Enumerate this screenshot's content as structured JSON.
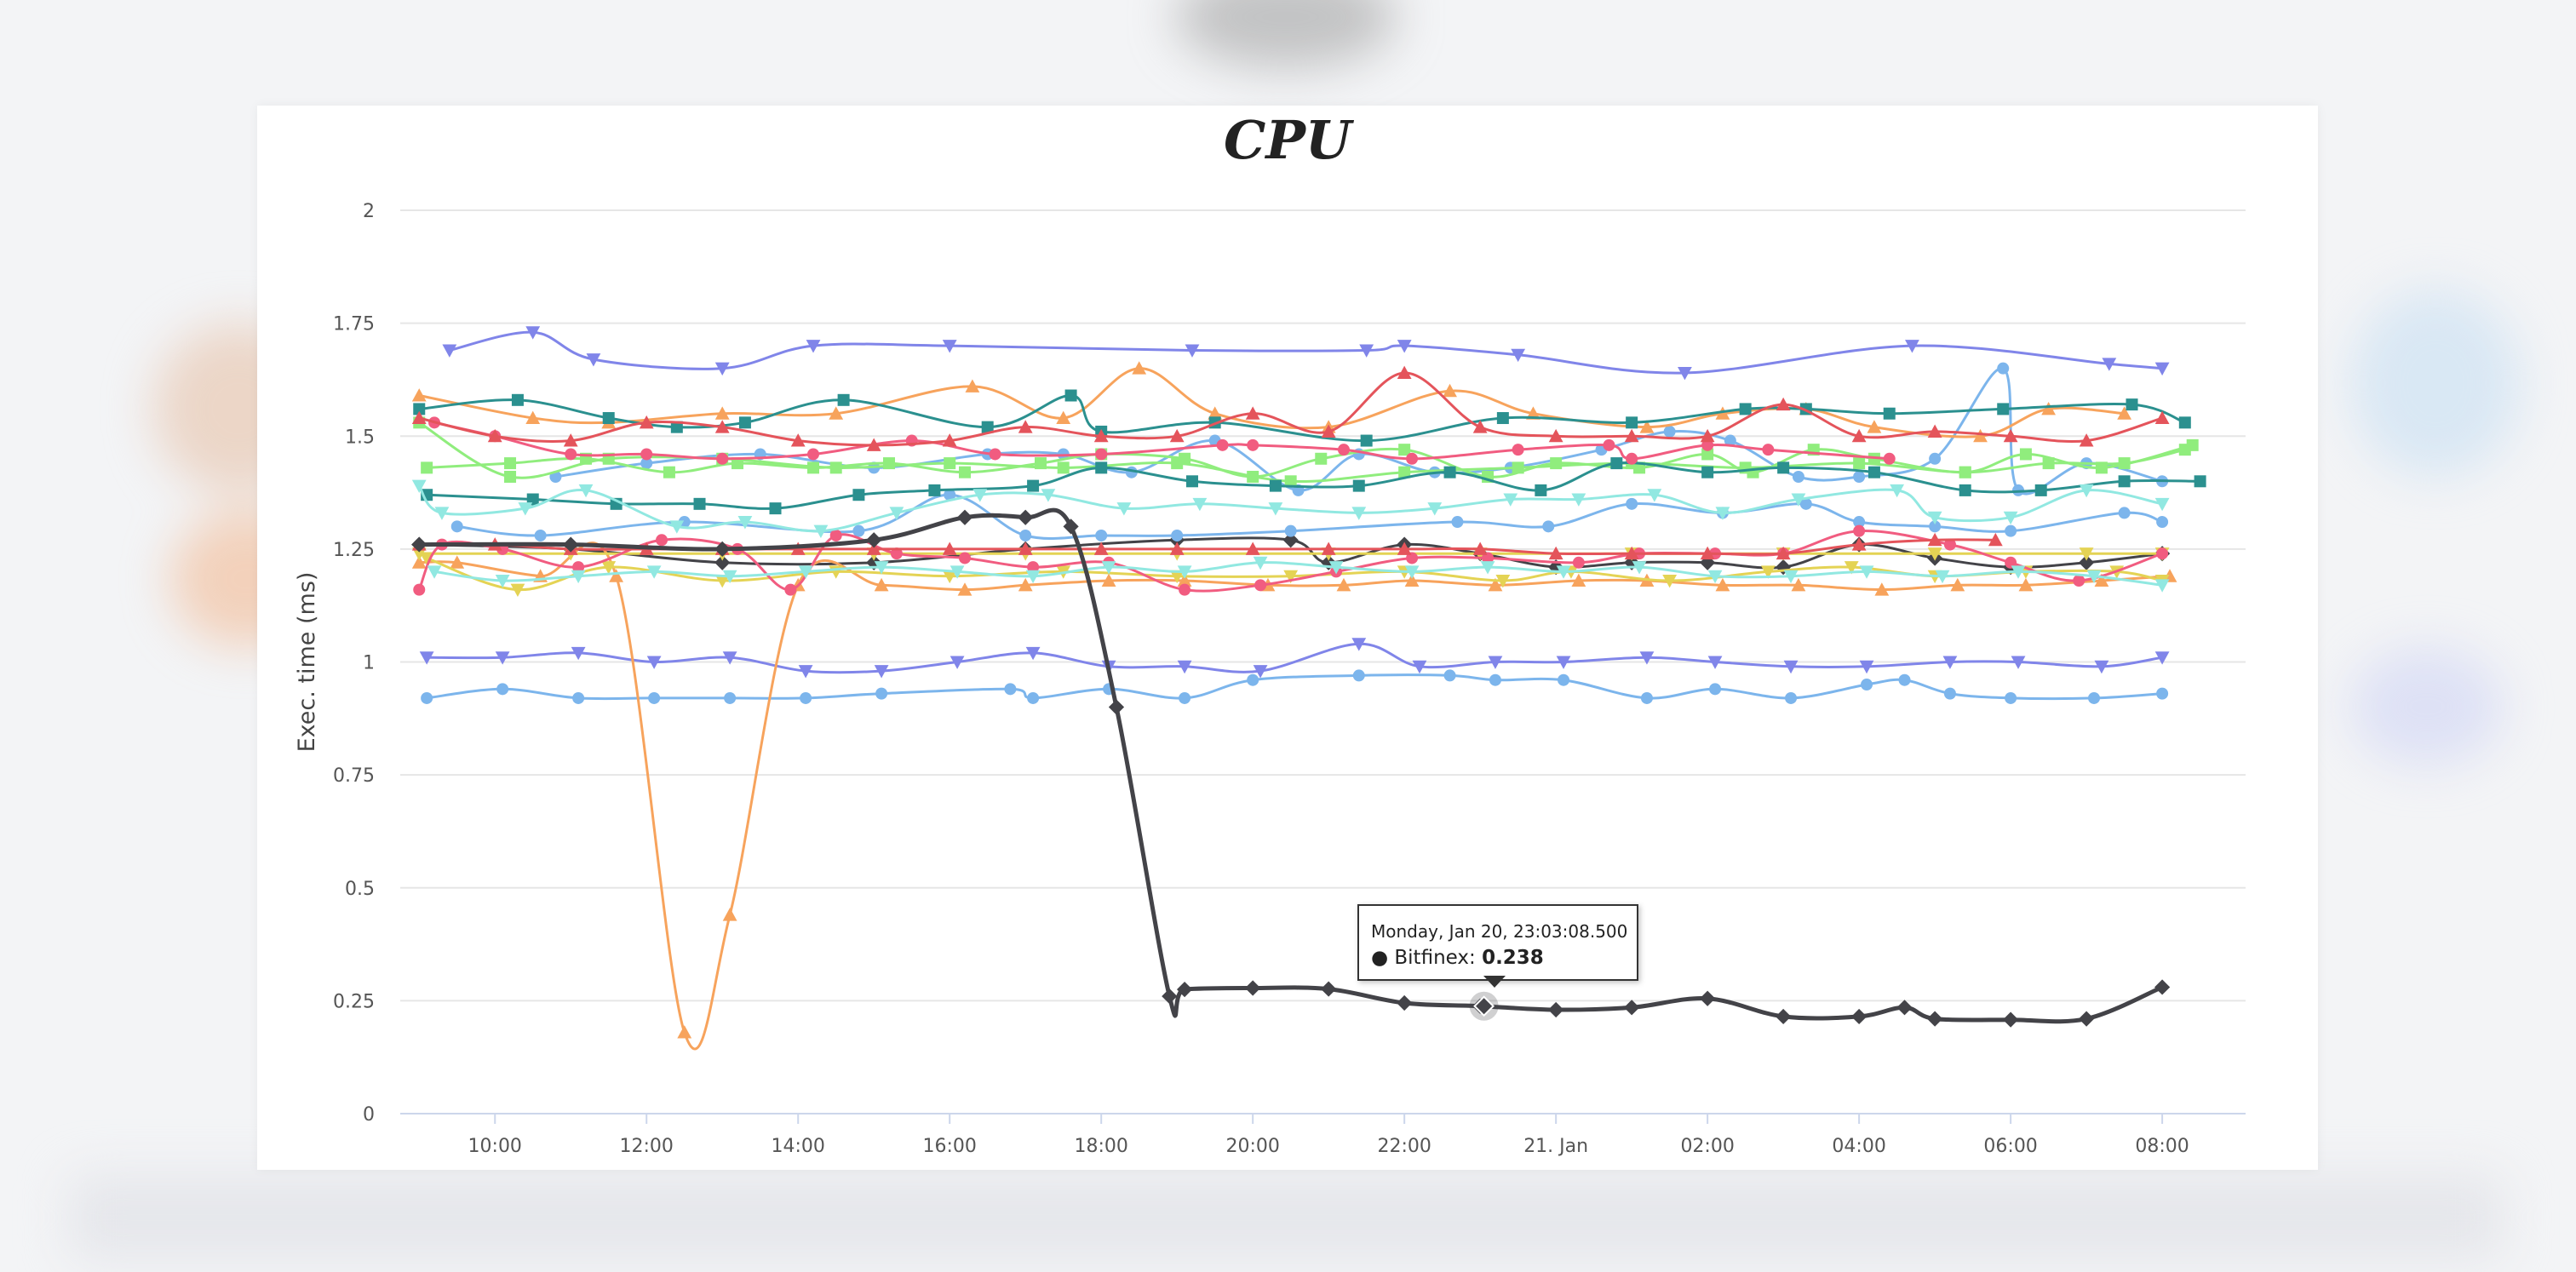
{
  "chart_data": {
    "type": "line",
    "title": "CPU",
    "ylabel": "Exec. time (ms)",
    "xlabel": "",
    "ylim": [
      0,
      2
    ],
    "yticks": [
      0,
      0.25,
      0.5,
      0.75,
      1,
      1.25,
      1.5,
      1.75,
      2
    ],
    "x_hours_range": [
      8.75,
      33.1
    ],
    "xticks": [
      {
        "h": 10,
        "label": "10:00"
      },
      {
        "h": 12,
        "label": "12:00"
      },
      {
        "h": 14,
        "label": "14:00"
      },
      {
        "h": 16,
        "label": "16:00"
      },
      {
        "h": 18,
        "label": "18:00"
      },
      {
        "h": 20,
        "label": "20:00"
      },
      {
        "h": 22,
        "label": "22:00"
      },
      {
        "h": 24,
        "label": "21. Jan"
      },
      {
        "h": 26,
        "label": "02:00"
      },
      {
        "h": 28,
        "label": "04:00"
      },
      {
        "h": 30,
        "label": "06:00"
      },
      {
        "h": 32,
        "label": "08:00"
      }
    ],
    "grid": true,
    "legend": "none",
    "series": [
      {
        "name": "Bitfinex",
        "color": "#434348",
        "marker": "diamond",
        "width": 5,
        "x": [
          9,
          11,
          13,
          15,
          16.2,
          17,
          17.6,
          18.2,
          18.9,
          19.1,
          20,
          21,
          22,
          23,
          24,
          25,
          26,
          27,
          28,
          28.6,
          29,
          30,
          31,
          32
        ],
        "y": [
          1.26,
          1.26,
          1.25,
          1.27,
          1.32,
          1.32,
          1.3,
          0.9,
          0.26,
          0.275,
          0.278,
          0.276,
          0.245,
          0.238,
          0.23,
          0.235,
          0.255,
          0.215,
          0.215,
          0.235,
          0.21,
          0.208,
          0.21,
          0.28
        ]
      },
      {
        "name": "",
        "color": "#434348",
        "marker": "diamond",
        "width": 3,
        "x": [
          9,
          11,
          13,
          15,
          17,
          19,
          20.5,
          21,
          22,
          23,
          24,
          25,
          26,
          27,
          28,
          29,
          30,
          31,
          32
        ],
        "y": [
          1.26,
          1.25,
          1.22,
          1.22,
          1.25,
          1.27,
          1.27,
          1.22,
          1.26,
          1.24,
          1.21,
          1.22,
          1.22,
          1.21,
          1.26,
          1.23,
          1.21,
          1.22,
          1.24
        ]
      },
      {
        "name": "",
        "color": "#8085e9",
        "marker": "triangle-down",
        "width": 3,
        "x": [
          9.4,
          10.5,
          11.3,
          13,
          14.2,
          16,
          19.2,
          21.5,
          22,
          23.5,
          25.7,
          28.7,
          31.3,
          32
        ],
        "y": [
          1.69,
          1.73,
          1.67,
          1.65,
          1.7,
          1.7,
          1.69,
          1.69,
          1.7,
          1.68,
          1.64,
          1.7,
          1.66,
          1.65
        ]
      },
      {
        "name": "",
        "color": "#8085e9",
        "marker": "triangle-down",
        "width": 3,
        "x": [
          9.1,
          10.1,
          11.1,
          12.1,
          13.1,
          14.1,
          15.1,
          16.1,
          17.1,
          18.1,
          19.1,
          20.1,
          21.4,
          22.2,
          23.2,
          24.1,
          25.2,
          26.1,
          27.1,
          28.1,
          29.2,
          30.1,
          31.2,
          32
        ],
        "y": [
          1.01,
          1.01,
          1.02,
          1.0,
          1.01,
          0.98,
          0.98,
          1.0,
          1.02,
          0.99,
          0.99,
          0.98,
          1.04,
          0.99,
          1.0,
          1.0,
          1.01,
          1.0,
          0.99,
          0.99,
          1.0,
          1.0,
          0.99,
          1.01
        ]
      },
      {
        "name": "",
        "color": "#7cb5ec",
        "marker": "circle",
        "width": 3,
        "x": [
          9.1,
          10.1,
          11.1,
          12.1,
          13.1,
          14.1,
          15.1,
          16.8,
          17.1,
          18.1,
          19.1,
          20,
          21.4,
          22.6,
          23.2,
          24.1,
          25.2,
          26.1,
          27.1,
          28.1,
          28.6,
          29.2,
          30,
          31.1,
          32
        ],
        "y": [
          0.92,
          0.94,
          0.92,
          0.92,
          0.92,
          0.92,
          0.93,
          0.94,
          0.92,
          0.94,
          0.92,
          0.96,
          0.97,
          0.97,
          0.96,
          0.96,
          0.92,
          0.94,
          0.92,
          0.95,
          0.96,
          0.93,
          0.92,
          0.92,
          0.93
        ]
      },
      {
        "name": "",
        "color": "#7cb5ec",
        "marker": "circle",
        "width": 3,
        "x": [
          9.5,
          10.6,
          12.5,
          14.8,
          16,
          17,
          18,
          19,
          20.5,
          22.7,
          23.9,
          25,
          26.2,
          27.3,
          28,
          29,
          30,
          31.5,
          32
        ],
        "y": [
          1.3,
          1.28,
          1.31,
          1.29,
          1.37,
          1.28,
          1.28,
          1.28,
          1.29,
          1.31,
          1.3,
          1.35,
          1.33,
          1.35,
          1.31,
          1.3,
          1.29,
          1.33,
          1.31
        ]
      },
      {
        "name": "",
        "color": "#7cb5ec",
        "marker": "circle",
        "width": 3,
        "x": [
          10.8,
          12,
          13.5,
          15,
          16.5,
          17.5,
          18.4,
          19.5,
          20.6,
          21.4,
          22.4,
          23.4,
          24.6,
          25.5,
          26.3,
          27.2,
          28,
          29,
          29.9,
          30.1,
          31,
          32
        ],
        "y": [
          1.41,
          1.44,
          1.46,
          1.43,
          1.46,
          1.46,
          1.42,
          1.49,
          1.38,
          1.46,
          1.42,
          1.43,
          1.47,
          1.51,
          1.49,
          1.41,
          1.41,
          1.45,
          1.65,
          1.38,
          1.44,
          1.4
        ]
      },
      {
        "name": "",
        "color": "#f7a35c",
        "marker": "triangle",
        "width": 3,
        "x": [
          9,
          9.5,
          10.6,
          11.6,
          12.5,
          13.1,
          14,
          15.1,
          16.2,
          17,
          18.1,
          19.1,
          20.2,
          21.2,
          22.1,
          23.2,
          24.3,
          25.2,
          26.2,
          27.2,
          28.3,
          29.3,
          30.2,
          31.2,
          32.1
        ],
        "y": [
          1.22,
          1.22,
          1.19,
          1.19,
          0.18,
          0.44,
          1.17,
          1.17,
          1.16,
          1.17,
          1.18,
          1.18,
          1.17,
          1.17,
          1.18,
          1.17,
          1.18,
          1.18,
          1.17,
          1.17,
          1.16,
          1.17,
          1.17,
          1.18,
          1.19
        ]
      },
      {
        "name": "",
        "color": "#f7a35c",
        "marker": "triangle",
        "width": 3,
        "x": [
          9,
          10.5,
          11.5,
          13,
          14.5,
          16.3,
          17.5,
          18.5,
          19.5,
          21,
          22.6,
          23.7,
          25.2,
          26.2,
          27.3,
          28.2,
          29.6,
          30.5,
          31.5
        ],
        "y": [
          1.59,
          1.54,
          1.53,
          1.55,
          1.55,
          1.61,
          1.54,
          1.65,
          1.55,
          1.52,
          1.6,
          1.55,
          1.52,
          1.55,
          1.56,
          1.52,
          1.5,
          1.56,
          1.55
        ]
      },
      {
        "name": "",
        "color": "#e4d354",
        "marker": "triangle-down",
        "width": 3,
        "x": [
          9.1,
          10.3,
          11.5,
          13,
          14.5,
          16,
          17.5,
          19,
          20.5,
          22,
          23.3,
          24.2,
          25.5,
          26.8,
          27.9,
          29,
          30.2,
          31.4,
          32
        ],
        "y": [
          1.23,
          1.16,
          1.21,
          1.18,
          1.2,
          1.19,
          1.2,
          1.19,
          1.19,
          1.2,
          1.18,
          1.2,
          1.18,
          1.2,
          1.21,
          1.19,
          1.2,
          1.2,
          1.18
        ]
      },
      {
        "name": "",
        "color": "#e4d354",
        "marker": "triangle-down",
        "width": 3,
        "x": [
          9,
          11,
          13,
          15,
          17,
          19,
          21,
          23,
          25,
          27,
          29,
          31,
          32
        ],
        "y": [
          1.24,
          1.24,
          1.24,
          1.24,
          1.24,
          1.24,
          1.24,
          1.24,
          1.24,
          1.24,
          1.24,
          1.24,
          1.24
        ]
      },
      {
        "name": "",
        "color": "#90ed7d",
        "marker": "square",
        "width": 3,
        "x": [
          9.1,
          10.2,
          11.2,
          12.3,
          13.2,
          14.2,
          15.2,
          16.2,
          17.2,
          18,
          19.1,
          20,
          20.9,
          22,
          23.1,
          24,
          25.1,
          26,
          26.6,
          27.4,
          28.2,
          29.4,
          30.2,
          31.2,
          32.4
        ],
        "y": [
          1.43,
          1.44,
          1.45,
          1.42,
          1.44,
          1.43,
          1.44,
          1.42,
          1.44,
          1.46,
          1.45,
          1.41,
          1.45,
          1.47,
          1.41,
          1.44,
          1.43,
          1.46,
          1.42,
          1.47,
          1.45,
          1.42,
          1.46,
          1.43,
          1.48
        ]
      },
      {
        "name": "",
        "color": "#90ed7d",
        "marker": "square",
        "width": 3,
        "x": [
          9,
          10.2,
          11.5,
          13,
          14.5,
          16,
          17.5,
          19,
          20.5,
          22,
          23.5,
          25,
          26.5,
          28,
          29.4,
          30.5,
          31.5,
          32.3
        ],
        "y": [
          1.53,
          1.41,
          1.45,
          1.45,
          1.43,
          1.44,
          1.43,
          1.44,
          1.4,
          1.42,
          1.43,
          1.44,
          1.43,
          1.44,
          1.42,
          1.44,
          1.44,
          1.47
        ]
      },
      {
        "name": "",
        "color": "#2b908f",
        "marker": "square",
        "width": 3,
        "x": [
          9,
          10.3,
          11.5,
          12.4,
          13.3,
          14.6,
          16.5,
          17.6,
          18,
          19.5,
          21.5,
          23.3,
          25,
          26.5,
          27.3,
          28.4,
          29.9,
          31.6,
          32.3
        ],
        "y": [
          1.56,
          1.58,
          1.54,
          1.52,
          1.53,
          1.58,
          1.52,
          1.59,
          1.51,
          1.53,
          1.49,
          1.54,
          1.53,
          1.56,
          1.56,
          1.55,
          1.56,
          1.57,
          1.53
        ]
      },
      {
        "name": "",
        "color": "#2b908f",
        "marker": "square",
        "width": 3,
        "x": [
          9.1,
          10.5,
          11.6,
          12.7,
          13.7,
          14.8,
          15.8,
          17.1,
          18,
          19.2,
          20.3,
          21.4,
          22.6,
          23.8,
          24.8,
          26,
          27,
          28.2,
          29.4,
          30.4,
          31.5,
          32.5
        ],
        "y": [
          1.37,
          1.36,
          1.35,
          1.35,
          1.34,
          1.37,
          1.38,
          1.39,
          1.43,
          1.4,
          1.39,
          1.39,
          1.42,
          1.38,
          1.44,
          1.42,
          1.43,
          1.42,
          1.38,
          1.38,
          1.4,
          1.4
        ]
      },
      {
        "name": "",
        "color": "#f15c80",
        "marker": "circle",
        "width": 3,
        "x": [
          9,
          9.3,
          10.1,
          11.1,
          12.2,
          13.2,
          13.9,
          14.5,
          15.3,
          16.2,
          17.1,
          18.1,
          19.1,
          20.1,
          21.1,
          22.1,
          23.1,
          24.3,
          25.1,
          26.1,
          27,
          28,
          29.2,
          30,
          30.9,
          32
        ],
        "y": [
          1.16,
          1.26,
          1.25,
          1.21,
          1.27,
          1.25,
          1.16,
          1.28,
          1.24,
          1.23,
          1.21,
          1.22,
          1.16,
          1.17,
          1.2,
          1.23,
          1.23,
          1.22,
          1.24,
          1.24,
          1.24,
          1.29,
          1.26,
          1.22,
          1.18,
          1.24
        ]
      },
      {
        "name": "",
        "color": "#f15c80",
        "marker": "circle",
        "width": 3,
        "x": [
          9.2,
          10,
          11,
          12,
          13,
          14.2,
          15.5,
          16.6,
          18,
          19.6,
          20,
          21.2,
          22.1,
          23.5,
          24.7,
          25,
          26,
          26.8,
          28.4
        ],
        "y": [
          1.53,
          1.5,
          1.46,
          1.46,
          1.45,
          1.46,
          1.49,
          1.46,
          1.46,
          1.48,
          1.48,
          1.47,
          1.45,
          1.47,
          1.48,
          1.45,
          1.48,
          1.47,
          1.45
        ]
      },
      {
        "name": "",
        "color": "#e4545b",
        "marker": "triangle",
        "width": 3,
        "x": [
          9,
          10,
          11,
          12,
          13,
          14,
          15,
          16,
          17,
          18,
          19,
          20,
          21,
          22,
          23,
          24,
          25,
          26,
          27,
          28,
          29,
          30,
          31,
          32
        ],
        "y": [
          1.54,
          1.5,
          1.49,
          1.53,
          1.52,
          1.49,
          1.48,
          1.49,
          1.52,
          1.5,
          1.5,
          1.55,
          1.51,
          1.64,
          1.52,
          1.5,
          1.5,
          1.5,
          1.57,
          1.5,
          1.51,
          1.5,
          1.49,
          1.54
        ]
      },
      {
        "name": "",
        "color": "#e4545b",
        "marker": "triangle",
        "width": 3,
        "x": [
          9,
          10,
          11,
          12,
          13,
          14,
          15,
          16,
          17,
          18,
          19,
          20,
          21,
          22,
          23,
          24,
          25,
          26,
          27,
          28,
          29,
          29.8
        ],
        "y": [
          1.26,
          1.26,
          1.25,
          1.25,
          1.25,
          1.25,
          1.25,
          1.25,
          1.25,
          1.25,
          1.25,
          1.25,
          1.25,
          1.25,
          1.25,
          1.24,
          1.24,
          1.24,
          1.24,
          1.26,
          1.27,
          1.27
        ]
      },
      {
        "name": "",
        "color": "#91e8e1",
        "marker": "triangle-down",
        "width": 3,
        "x": [
          9,
          9.3,
          10.4,
          11.2,
          12.4,
          13.3,
          14.3,
          15.3,
          16.4,
          17.3,
          18.3,
          19.3,
          20.3,
          21.4,
          22.4,
          23.4,
          24.3,
          25.3,
          26.2,
          27.2,
          28.5,
          29,
          30,
          31,
          32
        ],
        "y": [
          1.39,
          1.33,
          1.34,
          1.38,
          1.3,
          1.31,
          1.29,
          1.33,
          1.37,
          1.37,
          1.34,
          1.35,
          1.34,
          1.33,
          1.34,
          1.36,
          1.36,
          1.37,
          1.33,
          1.36,
          1.38,
          1.32,
          1.32,
          1.38,
          1.35
        ]
      },
      {
        "name": "",
        "color": "#91e8e1",
        "marker": "triangle-down",
        "width": 3,
        "x": [
          9.2,
          10.1,
          11.1,
          12.1,
          13.1,
          14.1,
          15.1,
          16.1,
          17.1,
          18.1,
          19.1,
          20.1,
          21.1,
          22.1,
          23.1,
          24.1,
          25.1,
          26.1,
          27.1,
          28.1,
          29.1,
          30.1,
          31.1,
          32
        ],
        "y": [
          1.2,
          1.18,
          1.19,
          1.2,
          1.19,
          1.2,
          1.21,
          1.2,
          1.19,
          1.21,
          1.2,
          1.22,
          1.21,
          1.2,
          1.21,
          1.2,
          1.21,
          1.19,
          1.19,
          1.2,
          1.19,
          1.2,
          1.19,
          1.17
        ]
      }
    ],
    "tooltip": {
      "date": "Monday, Jan 20, 23:03:08.500",
      "series": "Bitfinex",
      "value": "0.238",
      "bullet": "●",
      "x": 23.05,
      "y": 0.238
    }
  }
}
